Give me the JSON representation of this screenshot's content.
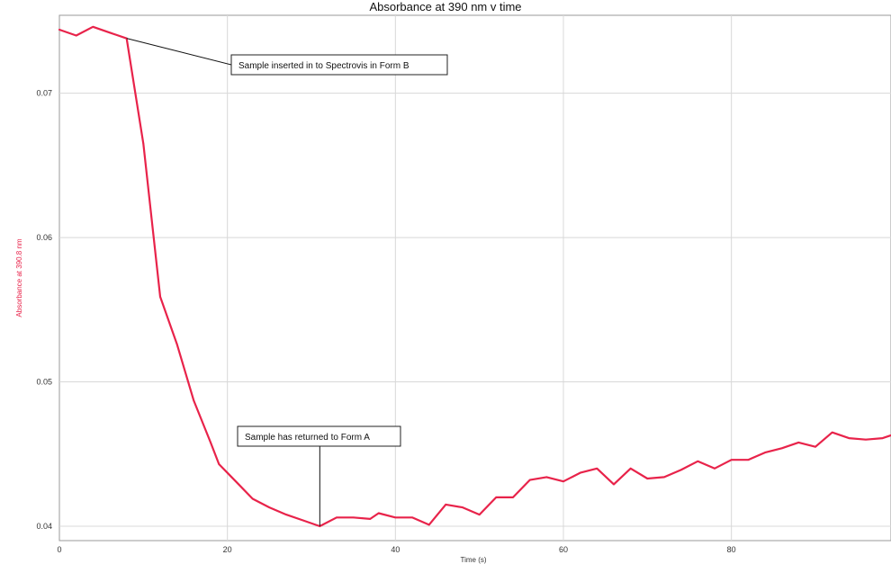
{
  "chart_data": {
    "type": "line",
    "title": "Absorbance at 390 nm v time",
    "xlabel": "Time (s)",
    "ylabel": "Absorbance at 390.8 nm",
    "xlim": [
      0,
      99
    ],
    "ylim": [
      0.039,
      0.0754
    ],
    "xticks": [
      0,
      20,
      40,
      60,
      80
    ],
    "yticks": [
      0.04,
      0.05,
      0.06,
      0.07
    ],
    "xtick_labels": [
      "0",
      "20",
      "40",
      "60",
      "80"
    ],
    "ytick_labels": [
      "0.04",
      "0.05",
      "0.06",
      "0.07"
    ],
    "grid": true,
    "series": [
      {
        "color": "#e8234a",
        "x": [
          0,
          2,
          4,
          6,
          8,
          10,
          12,
          14,
          16,
          18,
          19,
          21,
          23,
          25,
          27,
          29,
          31,
          33,
          35,
          37,
          38,
          40,
          42,
          44,
          46,
          48,
          50,
          52,
          54,
          56,
          58,
          60,
          62,
          64,
          66,
          68,
          70,
          72,
          74,
          76,
          78,
          80,
          82,
          84,
          86,
          88,
          90,
          92,
          94,
          96,
          98,
          99
        ],
        "y": [
          0.0744,
          0.074,
          0.0746,
          0.0742,
          0.0738,
          0.0665,
          0.0559,
          0.0526,
          0.0487,
          0.0458,
          0.0443,
          0.0431,
          0.0419,
          0.0413,
          0.0408,
          0.0404,
          0.04,
          0.0406,
          0.0406,
          0.0405,
          0.0409,
          0.0406,
          0.0406,
          0.0401,
          0.0415,
          0.0413,
          0.0408,
          0.042,
          0.042,
          0.0432,
          0.0434,
          0.0431,
          0.0437,
          0.044,
          0.0429,
          0.044,
          0.0433,
          0.0434,
          0.0439,
          0.0445,
          0.044,
          0.0446,
          0.0446,
          0.0451,
          0.0454,
          0.0458,
          0.0455,
          0.0465,
          0.0461,
          0.046,
          0.0461,
          0.0463
        ]
      }
    ],
    "annotations": [
      {
        "text": "Sample inserted in to Spectrovis in Form B",
        "x": 8,
        "y": 0.0738
      },
      {
        "text": "Sample has returned to Form A",
        "x": 31,
        "y": 0.04
      }
    ]
  }
}
